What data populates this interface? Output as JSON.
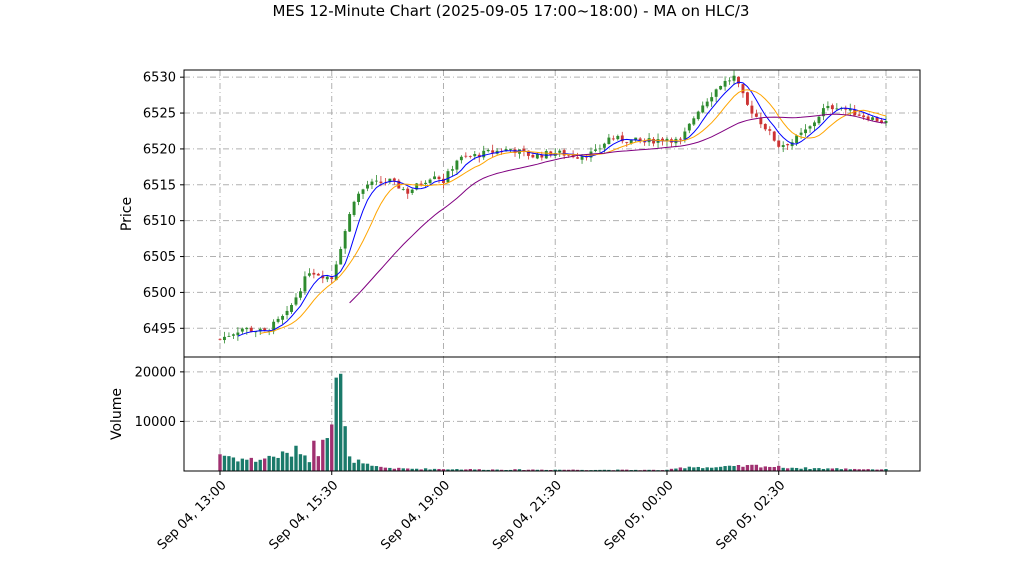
{
  "chart_data": {
    "type": "candlestick",
    "title": "MES 12-Minute Chart (2025-09-05 17:00~18:00) - MA on HLC/3",
    "price_panel": {
      "ylabel": "Price",
      "ylim": [
        6491,
        6531
      ],
      "yticks": [
        6495,
        6500,
        6505,
        6510,
        6515,
        6520,
        6525,
        6530
      ],
      "grid": true
    },
    "volume_panel": {
      "ylabel": "Volume",
      "ylim": [
        0,
        23000
      ],
      "yticks": [
        10000,
        20000
      ],
      "grid": true
    },
    "x_axis": {
      "tick_labels": [
        "Sep 04, 13:00",
        "Sep 04, 15:30",
        "Sep 04, 19:00",
        "Sep 04, 21:30",
        "Sep 05, 00:00",
        "Sep 05, 02:30"
      ],
      "tick_index": [
        0,
        25,
        50,
        75,
        100,
        125
      ],
      "bar_count": 150
    },
    "price_keyframes": [
      [
        0,
        6493.5
      ],
      [
        5,
        6495
      ],
      [
        10,
        6494.5
      ],
      [
        15,
        6497
      ],
      [
        20,
        6503
      ],
      [
        25,
        6502
      ],
      [
        30,
        6513
      ],
      [
        33,
        6515
      ],
      [
        38,
        6515.5
      ],
      [
        42,
        6514
      ],
      [
        48,
        6516.5
      ],
      [
        50,
        6515.5
      ],
      [
        53,
        6518.5
      ],
      [
        60,
        6519.5
      ],
      [
        65,
        6520
      ],
      [
        70,
        6519
      ],
      [
        75,
        6519.5
      ],
      [
        80,
        6519
      ],
      [
        84,
        6519.5
      ],
      [
        87,
        6521.5
      ],
      [
        95,
        6521
      ],
      [
        100,
        6521.5
      ],
      [
        103,
        6521
      ],
      [
        107,
        6525.5
      ],
      [
        112,
        6529
      ],
      [
        115,
        6530
      ],
      [
        118,
        6526
      ],
      [
        122,
        6523
      ],
      [
        125,
        6520.5
      ],
      [
        128,
        6521
      ],
      [
        132,
        6523
      ],
      [
        135,
        6525.5
      ],
      [
        138,
        6526
      ],
      [
        142,
        6525
      ],
      [
        150,
        6523.5
      ]
    ],
    "volume_keyframes": [
      [
        0,
        3500
      ],
      [
        4,
        2500
      ],
      [
        8,
        2200
      ],
      [
        12,
        3000
      ],
      [
        16,
        3500
      ],
      [
        18,
        4500
      ],
      [
        19,
        3200
      ],
      [
        20,
        2500
      ],
      [
        21,
        5000
      ],
      [
        22,
        4000
      ],
      [
        23,
        8000
      ],
      [
        24,
        9000
      ],
      [
        25,
        12000
      ],
      [
        26,
        20000
      ],
      [
        27,
        17000
      ],
      [
        28,
        8000
      ],
      [
        29,
        2400
      ],
      [
        30,
        2300
      ],
      [
        32,
        1400
      ],
      [
        34,
        900
      ],
      [
        40,
        500
      ],
      [
        50,
        400
      ],
      [
        60,
        300
      ],
      [
        80,
        250
      ],
      [
        100,
        200
      ],
      [
        105,
        900
      ],
      [
        110,
        700
      ],
      [
        115,
        900
      ],
      [
        120,
        1100
      ],
      [
        123,
        900
      ],
      [
        130,
        600
      ],
      [
        140,
        450
      ],
      [
        150,
        300
      ]
    ],
    "ma_lines": [
      {
        "color": "#0000ff",
        "period": 5
      },
      {
        "color": "#ffa500",
        "period": 10
      },
      {
        "color": "#800080",
        "period": 30
      }
    ],
    "colors": {
      "up": "#2e8b2e",
      "down": "#cc3333",
      "vol_up": "#1a7a6a",
      "vol_down": "#a03070"
    }
  }
}
